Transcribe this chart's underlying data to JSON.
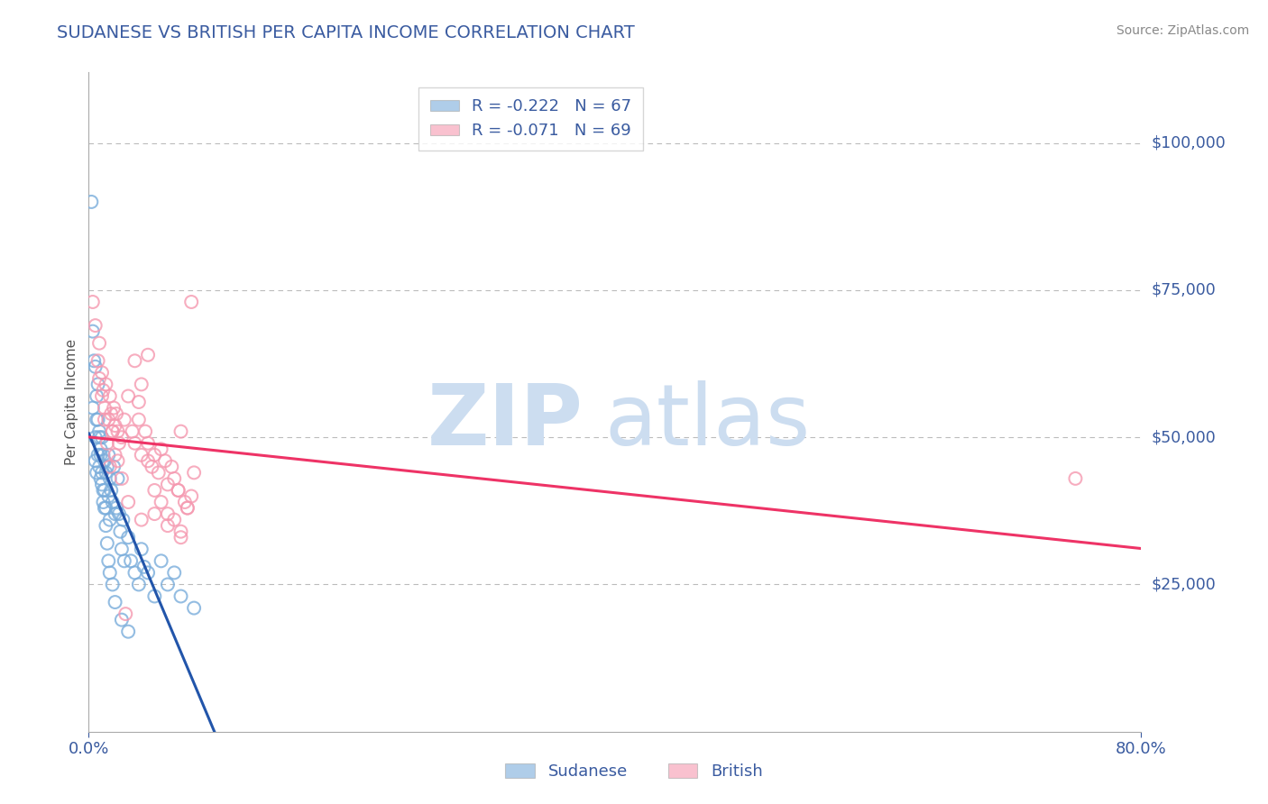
{
  "title": "SUDANESE VS BRITISH PER CAPITA INCOME CORRELATION CHART",
  "source_text": "Source: ZipAtlas.com",
  "ylabel": "Per Capita Income",
  "xlim": [
    0.0,
    0.8
  ],
  "ylim": [
    0,
    112000
  ],
  "title_color": "#3a5ba0",
  "axis_color": "#3a5ba0",
  "background_color": "#ffffff",
  "grid_color": "#bbbbbb",
  "watermark_zip": "ZIP",
  "watermark_atlas": "atlas",
  "watermark_color": "#ccddf0",
  "legend_r1": "R = -0.222",
  "legend_n1": "N = 67",
  "legend_r2": "R = -0.071",
  "legend_n2": "N = 69",
  "legend_label1": "Sudanese",
  "legend_label2": "British",
  "blue_color": "#7aaddb",
  "pink_color": "#f599b0",
  "blue_line_color": "#2255aa",
  "pink_line_color": "#ee3366",
  "dashed_line_color": "#bbbbbb",
  "sudanese_x": [
    0.002,
    0.003,
    0.004,
    0.005,
    0.005,
    0.006,
    0.006,
    0.007,
    0.007,
    0.008,
    0.008,
    0.009,
    0.009,
    0.01,
    0.01,
    0.011,
    0.011,
    0.012,
    0.012,
    0.013,
    0.013,
    0.014,
    0.015,
    0.015,
    0.016,
    0.016,
    0.017,
    0.018,
    0.019,
    0.02,
    0.021,
    0.022,
    0.023,
    0.024,
    0.025,
    0.026,
    0.027,
    0.03,
    0.032,
    0.035,
    0.038,
    0.04,
    0.042,
    0.045,
    0.05,
    0.055,
    0.06,
    0.065,
    0.07,
    0.08,
    0.003,
    0.005,
    0.006,
    0.007,
    0.008,
    0.009,
    0.01,
    0.011,
    0.012,
    0.013,
    0.014,
    0.015,
    0.016,
    0.018,
    0.02,
    0.025,
    0.03
  ],
  "sudanese_y": [
    90000,
    55000,
    63000,
    50000,
    46000,
    53000,
    44000,
    59000,
    47000,
    51000,
    45000,
    48000,
    43000,
    50000,
    42000,
    47000,
    39000,
    46000,
    41000,
    44000,
    38000,
    45000,
    47000,
    40000,
    43000,
    36000,
    41000,
    39000,
    45000,
    37000,
    38000,
    43000,
    37000,
    34000,
    31000,
    36000,
    29000,
    33000,
    29000,
    27000,
    25000,
    31000,
    28000,
    27000,
    23000,
    29000,
    25000,
    27000,
    23000,
    21000,
    68000,
    62000,
    57000,
    53000,
    50000,
    47000,
    44000,
    41000,
    38000,
    35000,
    32000,
    29000,
    27000,
    25000,
    22000,
    19000,
    17000
  ],
  "british_x": [
    0.003,
    0.005,
    0.007,
    0.008,
    0.01,
    0.011,
    0.012,
    0.013,
    0.015,
    0.016,
    0.017,
    0.018,
    0.019,
    0.02,
    0.021,
    0.022,
    0.023,
    0.025,
    0.027,
    0.03,
    0.033,
    0.035,
    0.038,
    0.04,
    0.043,
    0.045,
    0.048,
    0.05,
    0.053,
    0.055,
    0.058,
    0.06,
    0.063,
    0.065,
    0.068,
    0.07,
    0.073,
    0.075,
    0.078,
    0.08,
    0.035,
    0.04,
    0.045,
    0.05,
    0.055,
    0.06,
    0.065,
    0.07,
    0.075,
    0.008,
    0.01,
    0.012,
    0.014,
    0.016,
    0.018,
    0.02,
    0.025,
    0.03,
    0.04,
    0.05,
    0.06,
    0.07,
    0.078,
    0.045,
    0.038,
    0.028,
    0.022,
    0.068,
    0.75
  ],
  "british_y": [
    73000,
    69000,
    63000,
    60000,
    61000,
    58000,
    55000,
    59000,
    53000,
    57000,
    54000,
    51000,
    55000,
    52000,
    54000,
    51000,
    49000,
    50000,
    53000,
    57000,
    51000,
    49000,
    53000,
    47000,
    51000,
    49000,
    45000,
    47000,
    44000,
    48000,
    46000,
    42000,
    45000,
    43000,
    41000,
    51000,
    39000,
    38000,
    40000,
    44000,
    63000,
    59000,
    46000,
    41000,
    39000,
    37000,
    36000,
    34000,
    38000,
    66000,
    57000,
    53000,
    49000,
    45000,
    51000,
    47000,
    43000,
    39000,
    36000,
    37000,
    35000,
    33000,
    73000,
    64000,
    56000,
    20000,
    46000,
    41000,
    43000
  ]
}
